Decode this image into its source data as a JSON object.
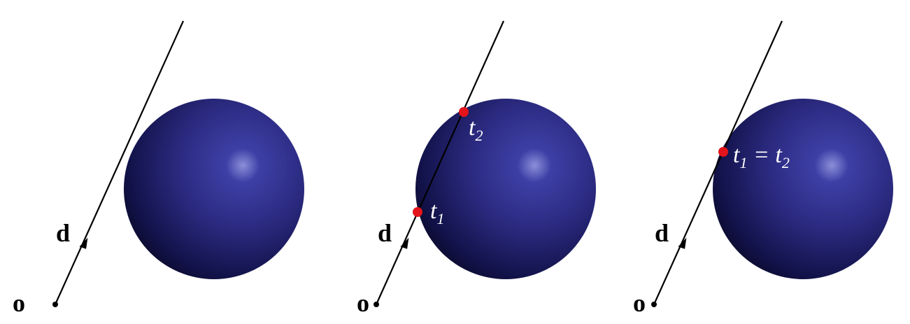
{
  "figure": {
    "panels": [
      {
        "name": "miss",
        "origin_label": "o",
        "direction_label": "d",
        "intersections": []
      },
      {
        "name": "two-intersections",
        "origin_label": "o",
        "direction_label": "d",
        "intersections": [
          {
            "label_base": "t",
            "label_sub": "1",
            "label_rest": ""
          },
          {
            "label_base": "t",
            "label_sub": "2",
            "label_rest": ""
          }
        ]
      },
      {
        "name": "tangent",
        "origin_label": "o",
        "direction_label": "d",
        "intersections": [
          {
            "label_base": "t",
            "label_sub": "1",
            "label_rest": " = t",
            "label_sub2": "2"
          }
        ]
      }
    ],
    "colors": {
      "ray": "#000000",
      "sphere_highlight": "#8b8fd8",
      "sphere_mid": "#2b2a80",
      "sphere_dark": "#07071c",
      "intersection_point": "#e3141b",
      "label_light": "#ffffff",
      "label_dark": "#000000"
    }
  }
}
